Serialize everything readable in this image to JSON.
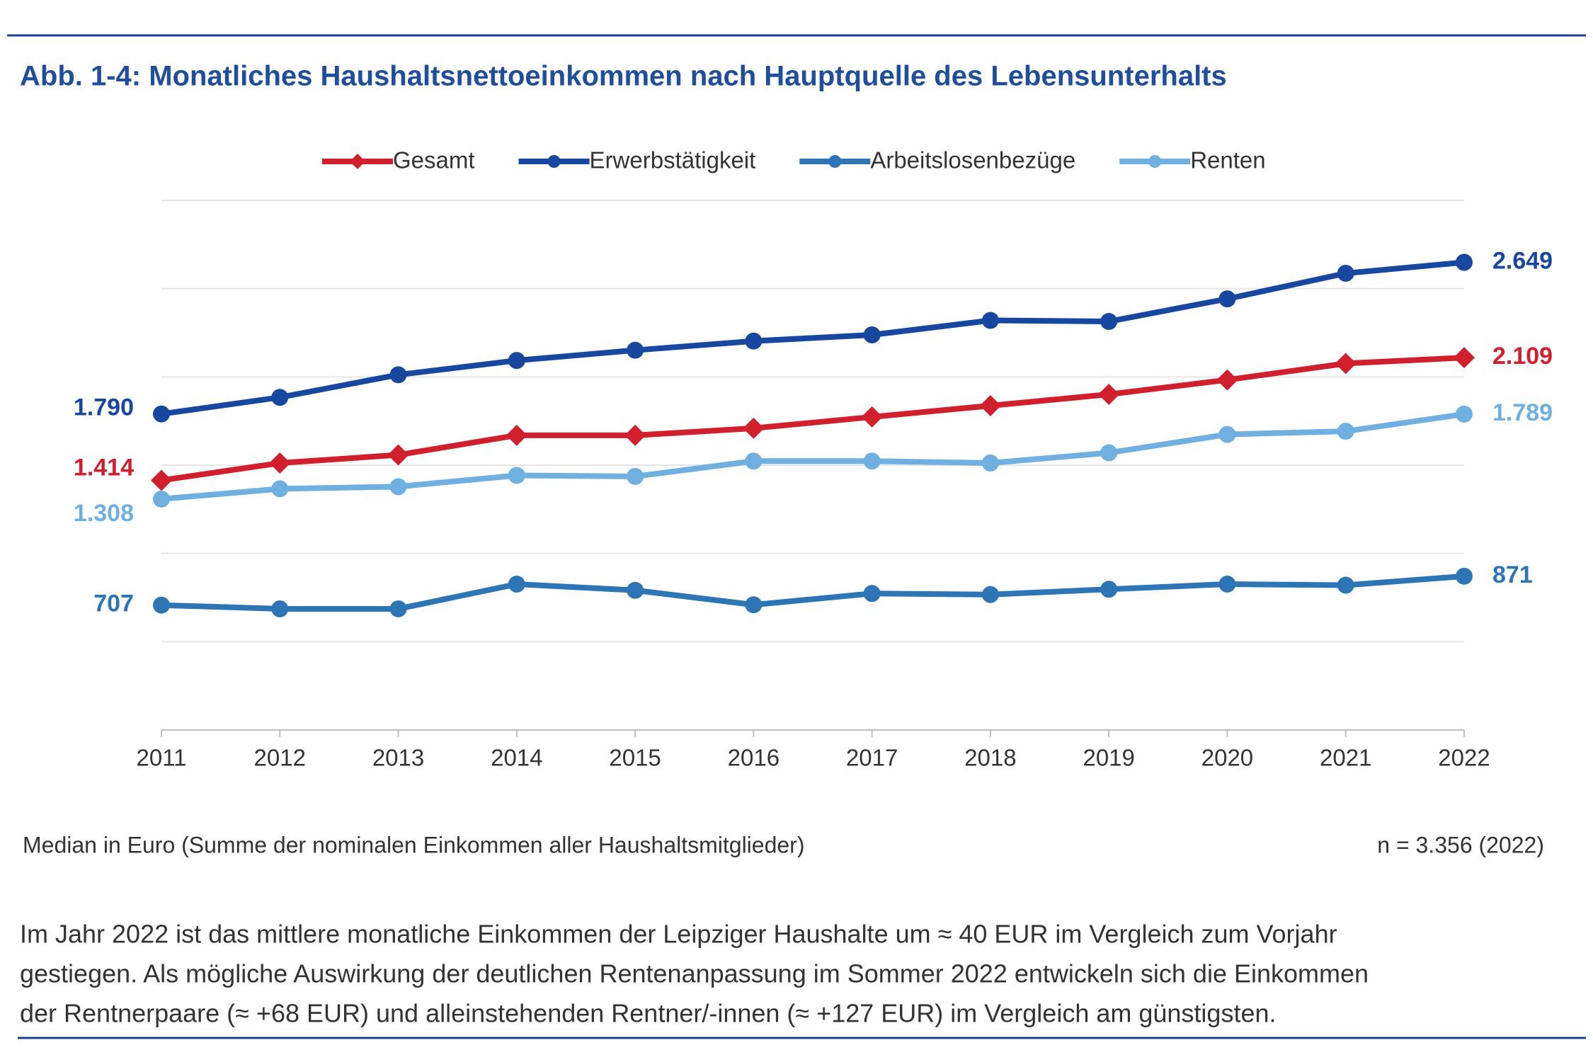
{
  "chart_data": {
    "type": "line",
    "title": "Abb. 1-4: Monatliches Haushaltsnettoeinkommen nach Hauptquelle des Lebensunterhalts",
    "categories": [
      "2011",
      "2012",
      "2013",
      "2014",
      "2015",
      "2016",
      "2017",
      "2018",
      "2019",
      "2020",
      "2021",
      "2022"
    ],
    "series": [
      {
        "name": "Gesamt",
        "color": "#d0202e",
        "marker": "diamond",
        "values": [
          1414,
          1512,
          1558,
          1669,
          1669,
          1709,
          1773,
          1837,
          1901,
          1983,
          2076,
          2109
        ],
        "value_labels": [
          "1.414",
          null,
          null,
          null,
          null,
          null,
          null,
          null,
          null,
          null,
          null,
          "2.109"
        ]
      },
      {
        "name": "Erwerbstätigkeit",
        "color": "#17479e",
        "marker": "circle",
        "values": [
          1790,
          1884,
          2012,
          2093,
          2151,
          2203,
          2238,
          2320,
          2314,
          2442,
          2587,
          2649
        ],
        "value_labels": [
          "1.790",
          null,
          null,
          null,
          null,
          null,
          null,
          null,
          null,
          null,
          null,
          "2.649"
        ]
      },
      {
        "name": "Arbeitslosenbezüge",
        "color": "#2e75b6",
        "marker": "circle",
        "values": [
          707,
          686,
          686,
          826,
          791,
          709,
          773,
          767,
          797,
          826,
          820,
          871
        ],
        "value_labels": [
          "707",
          null,
          null,
          null,
          null,
          null,
          null,
          null,
          null,
          null,
          null,
          "871"
        ]
      },
      {
        "name": "Renten",
        "color": "#70b0e0",
        "marker": "circle",
        "values": [
          1308,
          1366,
          1378,
          1442,
          1436,
          1523,
          1523,
          1512,
          1570,
          1674,
          1692,
          1789
        ],
        "value_labels": [
          "1.308",
          null,
          null,
          null,
          null,
          null,
          null,
          null,
          null,
          null,
          null,
          "1.789"
        ]
      }
    ],
    "ylim": [
      0,
      3000
    ],
    "yticks": [
      0,
      500,
      1000,
      1500,
      2000,
      2500,
      3000
    ],
    "grid": true,
    "legend": "top",
    "note": "Median in Euro (Summe der nominalen Einkommen aller Haushaltsmitglieder)",
    "sample_size": "n = 3.356 (2022)",
    "description": [
      "Im Jahr 2022 ist das mittlere monatliche Einkommen der Leipziger Haushalte um ≈ 40 EUR im Vergleich zum Vorjahr",
      "gestiegen. Als mögliche Auswirkung der deutlichen Rentenanpassung im Sommer 2022 entwickeln sich die Einkommen",
      "der Rentnerpaare (≈ +68 EUR) und alleinstehenden Rentner/-innen (≈ +127 EUR) im Vergleich am günstigsten."
    ]
  }
}
